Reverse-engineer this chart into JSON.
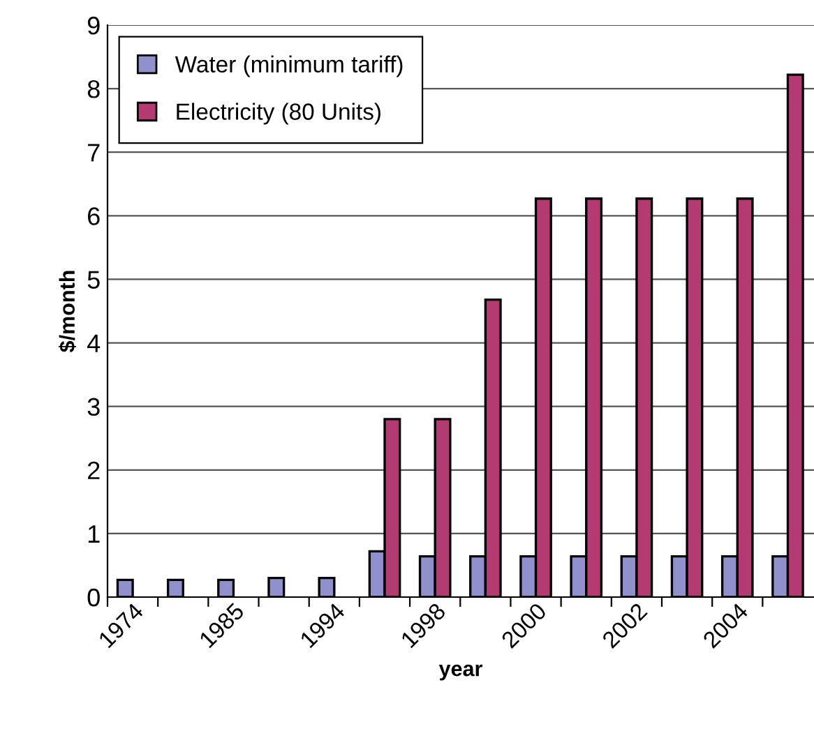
{
  "chart_data": {
    "type": "bar",
    "xlabel": "year",
    "ylabel": "$/month",
    "categories": [
      "1974",
      null,
      "1985",
      null,
      "1994",
      null,
      "1998",
      null,
      "2000",
      null,
      "2002",
      null,
      "2004",
      null
    ],
    "series": [
      {
        "name": "Water (minimum tariff)",
        "color": "#9090cc",
        "values": [
          0.27,
          0.27,
          0.27,
          0.3,
          0.3,
          0.72,
          0.64,
          0.64,
          0.64,
          0.64,
          0.64,
          0.64,
          0.64,
          0.64
        ]
      },
      {
        "name": "Electricity (80 Units)",
        "color": "#b33b72",
        "values": [
          null,
          null,
          null,
          null,
          null,
          2.8,
          2.8,
          4.68,
          6.27,
          6.27,
          6.27,
          6.27,
          6.27,
          8.22
        ]
      }
    ],
    "ylim": [
      0,
      9
    ],
    "yticks": [
      0,
      1,
      2,
      3,
      4,
      5,
      6,
      7,
      8,
      9
    ],
    "grid": "y",
    "legend": "top left"
  }
}
